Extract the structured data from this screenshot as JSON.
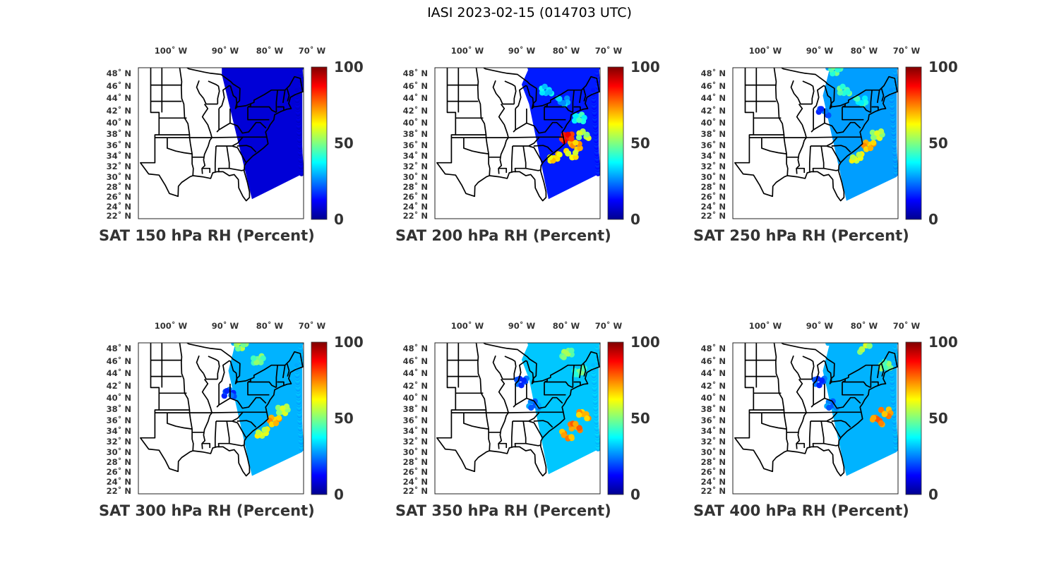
{
  "figure_title": "IASI 2023-02-15 (014703 UTC)",
  "colorbar": {
    "ticks": [
      "0",
      "50",
      "100"
    ],
    "stops": [
      "#00008f",
      "#0000ff",
      "#0080ff",
      "#00ffff",
      "#80ff80",
      "#ffff00",
      "#ff8000",
      "#ff0000",
      "#800000"
    ]
  },
  "lon_ticks": [
    "100˚ W",
    "90˚ W",
    "80˚ W",
    "70˚ W"
  ],
  "lat_ticks": [
    "48˚ N",
    "46˚ N",
    "44˚ N",
    "42˚ N",
    "40˚ N",
    "38˚ N",
    "36˚ N",
    "34˚ N",
    "32˚ N",
    "30˚ N",
    "28˚ N",
    "26˚ N",
    "24˚ N",
    "22˚ N"
  ],
  "chart_data": [
    {
      "type": "scatter-map",
      "title": "SAT 150 hPa RH (Percent)",
      "variable": "RH",
      "units": "Percent",
      "pressure_hPa": 150,
      "xlim": [
        -107,
        -67
      ],
      "ylim": [
        22,
        49
      ],
      "clim": [
        0,
        100
      ],
      "background_value": 8,
      "features": []
    },
    {
      "type": "scatter-map",
      "title": "SAT 200 hPa RH (Percent)",
      "variable": "RH",
      "units": "Percent",
      "pressure_hPa": 200,
      "xlim": [
        -107,
        -67
      ],
      "ylim": [
        22,
        49
      ],
      "clim": [
        0,
        100
      ],
      "background_value": 15,
      "features": [
        {
          "lon": -80,
          "lat": 45,
          "value": 35
        },
        {
          "lon": -76,
          "lat": 43,
          "value": 30
        },
        {
          "lon": -73,
          "lat": 35,
          "value": 70
        },
        {
          "lon": -74,
          "lat": 33.5,
          "value": 62
        },
        {
          "lon": -78,
          "lat": 33,
          "value": 65
        },
        {
          "lon": -75,
          "lat": 36.5,
          "value": 85
        },
        {
          "lon": -71,
          "lat": 37,
          "value": 55
        },
        {
          "lon": -72,
          "lat": 40,
          "value": 40
        }
      ]
    },
    {
      "type": "scatter-map",
      "title": "SAT 250 hPa RH (Percent)",
      "variable": "RH",
      "units": "Percent",
      "pressure_hPa": 250,
      "xlim": [
        -107,
        -67
      ],
      "ylim": [
        22,
        49
      ],
      "clim": [
        0,
        100
      ],
      "background_value": 28,
      "features": [
        {
          "lon": -82,
          "lat": 48.5,
          "value": 45
        },
        {
          "lon": -80,
          "lat": 45,
          "value": 45
        },
        {
          "lon": -76,
          "lat": 43,
          "value": 40
        },
        {
          "lon": -74,
          "lat": 35,
          "value": 70
        },
        {
          "lon": -77,
          "lat": 33,
          "value": 60
        },
        {
          "lon": -72,
          "lat": 37,
          "value": 55
        },
        {
          "lon": -85,
          "lat": 41,
          "value": 20
        }
      ]
    },
    {
      "type": "scatter-map",
      "title": "SAT 300 hPa RH (Percent)",
      "variable": "RH",
      "units": "Percent",
      "pressure_hPa": 300,
      "xlim": [
        -107,
        -67
      ],
      "ylim": [
        22,
        49
      ],
      "clim": [
        0,
        100
      ],
      "background_value": 30,
      "features": [
        {
          "lon": -82,
          "lat": 48.5,
          "value": 52
        },
        {
          "lon": -78,
          "lat": 46,
          "value": 48
        },
        {
          "lon": -74,
          "lat": 35,
          "value": 70
        },
        {
          "lon": -77,
          "lat": 33,
          "value": 60
        },
        {
          "lon": -72,
          "lat": 37,
          "value": 55
        },
        {
          "lon": -85,
          "lat": 40,
          "value": 20
        }
      ]
    },
    {
      "type": "scatter-map",
      "title": "SAT 350 hPa RH (Percent)",
      "variable": "RH",
      "units": "Percent",
      "pressure_hPa": 350,
      "xlim": [
        -107,
        -67
      ],
      "ylim": [
        22,
        49
      ],
      "clim": [
        0,
        100
      ],
      "background_value": 32,
      "features": [
        {
          "lon": -75,
          "lat": 47,
          "value": 50
        },
        {
          "lon": -72,
          "lat": 44,
          "value": 45
        },
        {
          "lon": -73,
          "lat": 34,
          "value": 75
        },
        {
          "lon": -75,
          "lat": 32.5,
          "value": 72
        },
        {
          "lon": -71,
          "lat": 36,
          "value": 70
        },
        {
          "lon": -86,
          "lat": 42,
          "value": 20
        },
        {
          "lon": -83,
          "lat": 38,
          "value": 25
        }
      ]
    },
    {
      "type": "scatter-map",
      "title": "SAT 400 hPa RH (Percent)",
      "variable": "RH",
      "units": "Percent",
      "pressure_hPa": 400,
      "xlim": [
        -107,
        -67
      ],
      "ylim": [
        22,
        49
      ],
      "clim": [
        0,
        100
      ],
      "background_value": 30,
      "features": [
        {
          "lon": -75,
          "lat": 48,
          "value": 55
        },
        {
          "lon": -70,
          "lat": 45,
          "value": 48
        },
        {
          "lon": -72,
          "lat": 35,
          "value": 75
        },
        {
          "lon": -70,
          "lat": 36.5,
          "value": 72
        },
        {
          "lon": -86,
          "lat": 42,
          "value": 20
        },
        {
          "lon": -83,
          "lat": 38,
          "value": 25
        }
      ]
    }
  ]
}
